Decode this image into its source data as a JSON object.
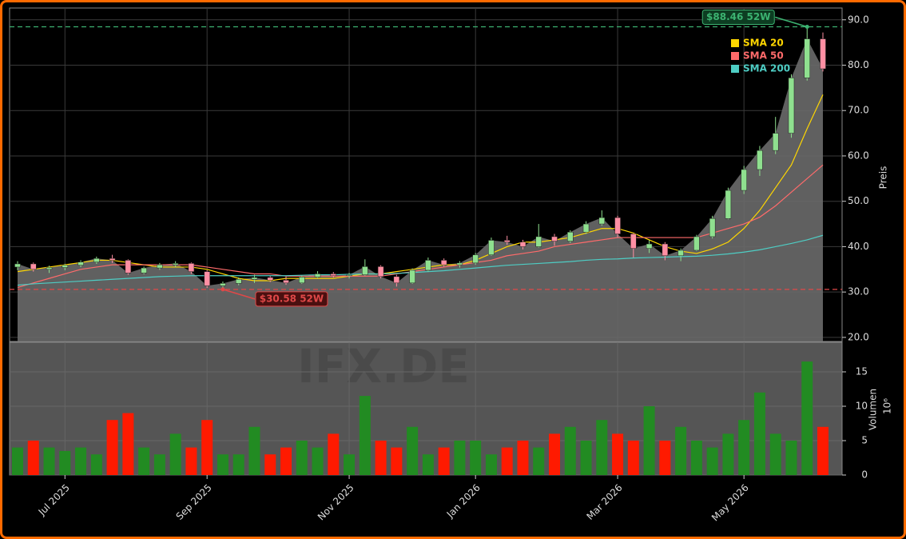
{
  "chart_data": {
    "type": "candlestick",
    "categories": [
      null,
      null,
      null,
      "Jul 2025",
      null,
      null,
      null,
      null,
      null,
      null,
      null,
      null,
      "Sep 2025",
      null,
      null,
      null,
      null,
      null,
      null,
      null,
      null,
      "Nov 2025",
      null,
      null,
      null,
      null,
      null,
      null,
      null,
      "Jan 2026",
      null,
      null,
      null,
      null,
      null,
      null,
      null,
      null,
      "Mar 2026",
      null,
      null,
      null,
      null,
      null,
      null,
      null,
      "May 2026",
      null,
      null,
      null,
      null,
      null
    ],
    "open": [
      35.5,
      36.2,
      35.0,
      35.4,
      35.9,
      36.6,
      37.4,
      37.0,
      34.2,
      35.3,
      36.0,
      36.3,
      34.5,
      31.4,
      31.9,
      32.8,
      33.2,
      32.6,
      32.0,
      33.3,
      34.0,
      33.6,
      33.8,
      35.6,
      33.4,
      32.0,
      34.8,
      37.0,
      36.0,
      36.4,
      38.2,
      41.4,
      41.0,
      40.0,
      42.2,
      41.2,
      43.2,
      45.0,
      46.4,
      42.8,
      39.6,
      40.6,
      38.0,
      39.2,
      42.2,
      46.2,
      52.4,
      57.0,
      61.2,
      65.0,
      77.2,
      85.8
    ],
    "high": [
      36.8,
      36.5,
      35.8,
      36.2,
      37.0,
      37.8,
      38.2,
      37.2,
      35.6,
      36.4,
      36.8,
      36.5,
      34.8,
      32.3,
      33.2,
      33.8,
      33.5,
      33.4,
      33.6,
      34.6,
      34.4,
      34.2,
      37.2,
      35.9,
      33.8,
      35.2,
      37.6,
      37.4,
      36.8,
      38.6,
      42.0,
      42.4,
      41.5,
      45.0,
      42.8,
      43.6,
      45.6,
      48.0,
      46.8,
      43.0,
      41.4,
      41.0,
      39.6,
      42.6,
      46.8,
      53.0,
      57.8,
      62.2,
      68.6,
      78.0,
      88.46,
      87.2
    ],
    "low": [
      34.8,
      34.5,
      34.2,
      34.8,
      35.5,
      36.2,
      36.4,
      33.8,
      33.9,
      34.9,
      35.5,
      34.0,
      30.9,
      30.58,
      31.5,
      32.0,
      32.2,
      31.6,
      31.8,
      33.0,
      33.2,
      33.0,
      33.6,
      33.0,
      31.2,
      31.8,
      34.5,
      35.6,
      35.4,
      36.0,
      38.0,
      40.4,
      39.4,
      39.8,
      40.2,
      40.8,
      42.8,
      44.6,
      42.0,
      37.6,
      38.6,
      37.0,
      36.8,
      39.0,
      41.8,
      46.0,
      51.6,
      55.6,
      60.4,
      64.0,
      76.6,
      78.6
    ],
    "close": [
      36.2,
      35.0,
      35.4,
      35.9,
      36.6,
      37.4,
      37.0,
      34.2,
      35.3,
      36.0,
      36.3,
      34.5,
      31.4,
      31.9,
      32.8,
      33.2,
      32.6,
      32.0,
      33.3,
      34.0,
      33.6,
      33.8,
      35.6,
      33.4,
      32.0,
      34.8,
      37.0,
      36.0,
      36.4,
      38.2,
      41.4,
      41.0,
      40.0,
      42.2,
      41.2,
      43.2,
      45.0,
      46.4,
      42.8,
      39.6,
      40.6,
      38.0,
      39.2,
      42.2,
      46.2,
      52.4,
      57.0,
      61.2,
      65.0,
      77.2,
      85.8,
      79.2
    ],
    "up_color": "#8fe08f",
    "down_color": "#ff8fa3",
    "area_color": "#6a6a6a",
    "ylim": [
      19.1,
      92.6
    ],
    "yticks": [
      {
        "value": 20,
        "label": "20.0"
      },
      {
        "value": 30,
        "label": "30.0"
      },
      {
        "value": 40,
        "label": "40.0"
      },
      {
        "value": 50,
        "label": "50.0"
      },
      {
        "value": 60,
        "label": "60.0"
      },
      {
        "value": 70,
        "label": "70.0"
      },
      {
        "value": 80,
        "label": "80.0"
      },
      {
        "value": 90,
        "label": "90.0"
      }
    ],
    "ylabel": "Preis",
    "series": [
      {
        "name": "SMA 20",
        "color": "#ffd700",
        "values": [
          34.5,
          35,
          35.5,
          36,
          36.5,
          37,
          37,
          36.5,
          36,
          35.5,
          35.5,
          35.5,
          35,
          34,
          33,
          32.5,
          32.5,
          33,
          33,
          33,
          33,
          33.5,
          34,
          34,
          34.5,
          35,
          35.5,
          36,
          36,
          37,
          38.5,
          40,
          41,
          41,
          41.5,
          42,
          43,
          44,
          44,
          43,
          41.5,
          40,
          39,
          38.5,
          39.5,
          41,
          44,
          48,
          53,
          58,
          66,
          73.5
        ]
      },
      {
        "name": "SMA 50",
        "color": "#ff6b6b",
        "values": [
          31,
          32,
          33,
          34,
          35,
          35.5,
          36,
          36,
          36,
          36,
          36,
          36,
          35.5,
          35,
          34.5,
          34,
          34,
          33.5,
          33.5,
          33.5,
          33.5,
          33.5,
          33.5,
          33.5,
          34,
          34.5,
          35,
          35.5,
          36,
          36.5,
          37,
          38,
          38.5,
          39,
          40,
          40.5,
          41,
          41.5,
          42,
          42,
          42,
          42,
          42,
          42,
          43,
          44,
          45,
          46.5,
          49,
          52,
          55,
          58
        ]
      },
      {
        "name": "SMA 200",
        "color": "#4ecdc4",
        "values": [
          31.5,
          31.8,
          32,
          32.2,
          32.4,
          32.6,
          32.8,
          33,
          33.2,
          33.4,
          33.5,
          33.6,
          33.6,
          33.6,
          33.6,
          33.6,
          33.6,
          33.6,
          33.7,
          33.8,
          33.8,
          33.9,
          34,
          34,
          34.1,
          34.3,
          34.5,
          34.7,
          35,
          35.3,
          35.6,
          35.9,
          36.1,
          36.3,
          36.5,
          36.7,
          37,
          37.2,
          37.3,
          37.5,
          37.6,
          37.7,
          37.8,
          37.9,
          38.1,
          38.4,
          38.8,
          39.3,
          40,
          40.7,
          41.5,
          42.5
        ]
      }
    ],
    "volume": {
      "values": [
        4,
        5,
        4,
        3.5,
        4,
        3,
        8,
        9,
        4,
        3,
        6,
        4,
        8,
        3,
        3,
        7,
        3,
        4,
        5,
        4,
        6,
        3,
        11.5,
        5,
        4,
        7,
        3,
        4,
        5,
        5,
        3,
        4,
        5,
        4,
        6,
        7,
        5,
        8,
        6,
        5,
        10,
        5,
        7,
        5,
        4,
        6,
        8,
        12,
        6,
        5,
        16.5,
        7
      ],
      "ylim": [
        0,
        19.3
      ],
      "yticks": [
        0,
        5,
        10,
        15
      ],
      "ylabel": "Volumen",
      "scale_label": "10⁶",
      "up_color": "#228b22",
      "down_color": "#ff1a00"
    },
    "annotations": [
      {
        "value": 88.46,
        "label": "$88.46 52W",
        "color": "#3cb371"
      },
      {
        "value": 30.58,
        "label": "$30.58 52W",
        "color": "#e04848"
      }
    ],
    "watermark": "IFX.DE",
    "grid": true
  }
}
